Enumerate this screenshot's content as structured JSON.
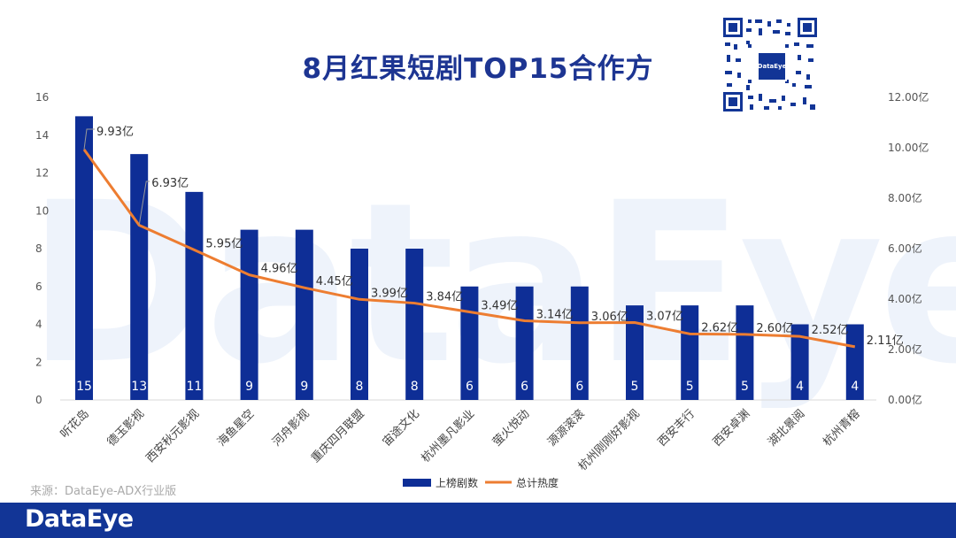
{
  "title": "8月红果短剧TOP15合作方",
  "watermark": "DataEye",
  "source": "来源：DataEye-ADX行业版",
  "brand": "DataEye",
  "qr_center_text": "DataEye",
  "colors": {
    "bar": "#0e2e96",
    "line": "#ed7d31",
    "title": "#1d3592",
    "footer": "#123596"
  },
  "chart_data": {
    "type": "bar+line",
    "categories": [
      "听花岛",
      "德玉影视",
      "西安秋元影视",
      "海鱼星空",
      "河舟影视",
      "重庆四月联盟",
      "宙途文化",
      "杭州墨凡影业",
      "萤火悦动",
      "源源滚滚",
      "杭州刚刚好影视",
      "西安丰行",
      "西安卓渊",
      "湖北景阅",
      "杭州青榕"
    ],
    "series": [
      {
        "name": "上榜剧数",
        "type": "bar",
        "axis": "left",
        "values": [
          15,
          13,
          11,
          9,
          9,
          8,
          8,
          6,
          6,
          6,
          5,
          5,
          5,
          4,
          4
        ]
      },
      {
        "name": "总计热度",
        "type": "line",
        "axis": "right",
        "values": [
          9.93,
          6.93,
          5.95,
          4.96,
          4.45,
          3.99,
          3.84,
          3.49,
          3.14,
          3.06,
          3.07,
          2.62,
          2.6,
          2.52,
          2.11
        ],
        "labels": [
          "9.93亿",
          "6.93亿",
          "5.95亿",
          "4.96亿",
          "4.45亿",
          "3.99亿",
          "3.84亿",
          "3.49亿",
          "3.14亿",
          "3.06亿",
          "3.07亿",
          "2.62亿",
          "2.60亿",
          "2.52亿",
          "2.11亿"
        ]
      }
    ],
    "y_left": {
      "min": 0,
      "max": 16,
      "ticks": [
        "0",
        "2",
        "4",
        "6",
        "8",
        "10",
        "12",
        "14",
        "16"
      ]
    },
    "y_right": {
      "min": 0,
      "max": 12,
      "ticks": [
        "0.00亿",
        "2.00亿",
        "4.00亿",
        "6.00亿",
        "8.00亿",
        "10.00亿",
        "12.00亿"
      ]
    },
    "legend": [
      "上榜剧数",
      "总计热度"
    ],
    "legend_position": "bottom",
    "grid": false
  }
}
